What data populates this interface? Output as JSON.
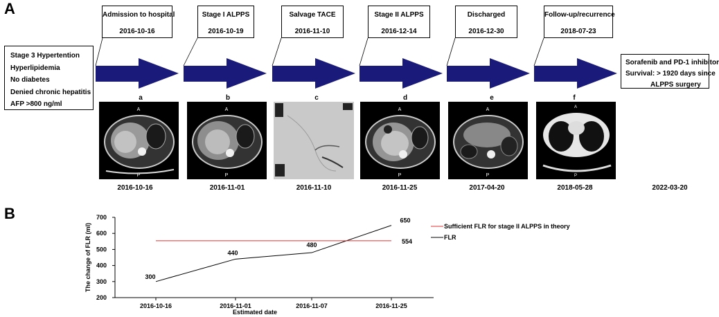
{
  "panel_a": {
    "letter": "A",
    "patient_info": [
      "Stage 3 Hypertention",
      "Hyperlipidemia",
      "No diabetes",
      "Denied chronic hepatitis",
      "AFP >800 ng/ml"
    ],
    "events": [
      {
        "title": "Admission to hospital",
        "date": "2016-10-16"
      },
      {
        "title": "Stage I ALPPS",
        "date": "2016-10-19"
      },
      {
        "title": "Salvage TACE",
        "date": "2016-11-10"
      },
      {
        "title": "Stage II ALPPS",
        "date": "2016-12-14"
      },
      {
        "title": "Discharged",
        "date": "2016-12-30"
      },
      {
        "title": "Follow-up/recurrence",
        "date": "2018-07-23"
      }
    ],
    "outcome": [
      "Sorafenib and PD-1 inhibitor",
      "Survival: > 1920 days since",
      "ALPPS surgery"
    ],
    "images": [
      {
        "label": "a",
        "date": "2016-10-16",
        "kind": "ct-abdomen"
      },
      {
        "label": "b",
        "date": "2016-11-01",
        "kind": "ct-abdomen"
      },
      {
        "label": "c",
        "date": "2016-11-10",
        "kind": "angiography"
      },
      {
        "label": "d",
        "date": "2016-11-25",
        "kind": "ct-abdomen"
      },
      {
        "label": "e",
        "date": "2017-04-20",
        "kind": "ct-abdomen"
      },
      {
        "label": "f",
        "date": "2018-05-28",
        "kind": "ct-chest"
      }
    ],
    "final_date": "2022-03-20",
    "arrow_color": "#1a1a7a"
  },
  "panel_b": {
    "letter": "B"
  },
  "chart_data": {
    "type": "line",
    "categories": [
      "2016-10-16",
      "2016-11-01",
      "2016-11-07",
      "2016-11-25"
    ],
    "xlabel": "Estimated date",
    "ylabel": "The change of FLR (ml)",
    "ylim": [
      200,
      700
    ],
    "yticks": [
      200,
      300,
      400,
      500,
      600,
      700
    ],
    "series": [
      {
        "name": "FLR",
        "values": [
          300,
          440,
          480,
          650
        ],
        "color": "#000000",
        "labels": [
          "300",
          "440",
          "480",
          "650"
        ]
      },
      {
        "name": "Sufficient FLR for stage II ALPPS in theory",
        "values": [
          554,
          554,
          554,
          554
        ],
        "color": "#e03030",
        "labels": [
          "554"
        ]
      }
    ],
    "legend": "top-right",
    "grid": false
  }
}
